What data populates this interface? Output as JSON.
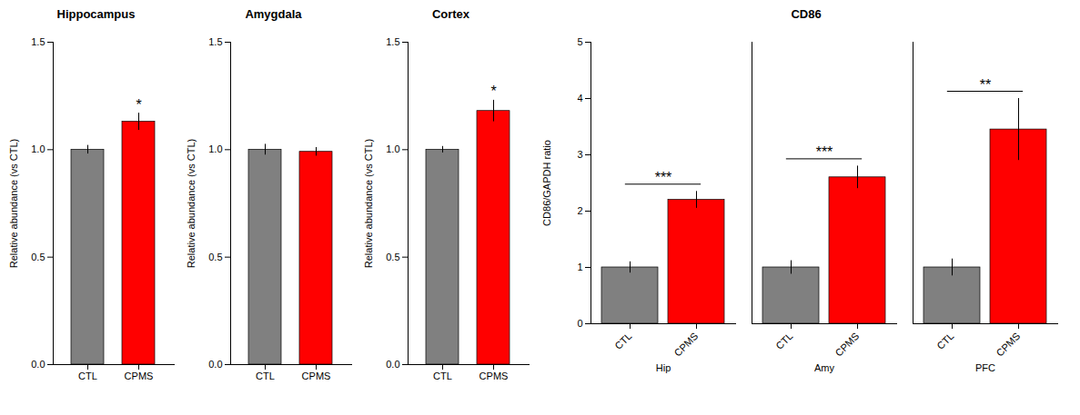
{
  "chart_data": [
    {
      "type": "bar",
      "title": "Hippocampus",
      "categories": [
        "CTL",
        "CPMS"
      ],
      "values": [
        1.0,
        1.13
      ],
      "errors": [
        0.02,
        0.04
      ],
      "colors": [
        "#808080",
        "#ff0000"
      ],
      "ylabel": "Relative abundance (vs CTL)",
      "ylim": [
        0,
        1.5
      ],
      "yticks": [
        {
          "value": 0.0,
          "label": "0.0"
        },
        {
          "value": 0.5,
          "label": "0.5"
        },
        {
          "value": 1.0,
          "label": "1.0"
        },
        {
          "value": 1.5,
          "label": "1.5"
        }
      ],
      "annotations": [
        {
          "category": "CPMS",
          "text": "*"
        }
      ]
    },
    {
      "type": "bar",
      "title": "Amygdala",
      "categories": [
        "CTL",
        "CPMS"
      ],
      "values": [
        1.0,
        0.99
      ],
      "errors": [
        0.025,
        0.02
      ],
      "colors": [
        "#808080",
        "#ff0000"
      ],
      "ylabel": "Relative abundance (vs CTL)",
      "ylim": [
        0,
        1.5
      ],
      "yticks": [
        {
          "value": 0.0,
          "label": "0.0"
        },
        {
          "value": 0.5,
          "label": "0.5"
        },
        {
          "value": 1.0,
          "label": "1.0"
        },
        {
          "value": 1.5,
          "label": "1.5"
        }
      ]
    },
    {
      "type": "bar",
      "title": "Cortex",
      "categories": [
        "CTL",
        "CPMS"
      ],
      "values": [
        1.0,
        1.18
      ],
      "errors": [
        0.015,
        0.05
      ],
      "colors": [
        "#808080",
        "#ff0000"
      ],
      "ylabel": "Relative abundance (vs CTL)",
      "ylim": [
        0,
        1.5
      ],
      "yticks": [
        {
          "value": 0.0,
          "label": "0.0"
        },
        {
          "value": 0.5,
          "label": "0.5"
        },
        {
          "value": 1.0,
          "label": "1.0"
        },
        {
          "value": 1.5,
          "label": "1.5"
        }
      ],
      "annotations": [
        {
          "category": "CPMS",
          "text": "*"
        }
      ]
    },
    {
      "type": "bar",
      "title": "CD86",
      "categories": [
        "Hip",
        "Amy",
        "PFC"
      ],
      "series": [
        {
          "name": "CTL",
          "color": "#808080",
          "values": [
            1.0,
            1.0,
            1.0
          ],
          "errors": [
            0.1,
            0.12,
            0.15
          ]
        },
        {
          "name": "CPMS",
          "color": "#ff0000",
          "values": [
            2.2,
            2.6,
            3.45
          ],
          "errors": [
            0.15,
            0.2,
            0.55
          ]
        }
      ],
      "ylabel": "CD86/GAPDH ratio",
      "ylim": [
        0,
        5
      ],
      "yticks": [
        0,
        1,
        2,
        3,
        4,
        5
      ],
      "annotations": [
        {
          "category": "Hip",
          "text": "***"
        },
        {
          "category": "Amy",
          "text": "***"
        },
        {
          "category": "PFC",
          "text": "**"
        }
      ]
    }
  ]
}
